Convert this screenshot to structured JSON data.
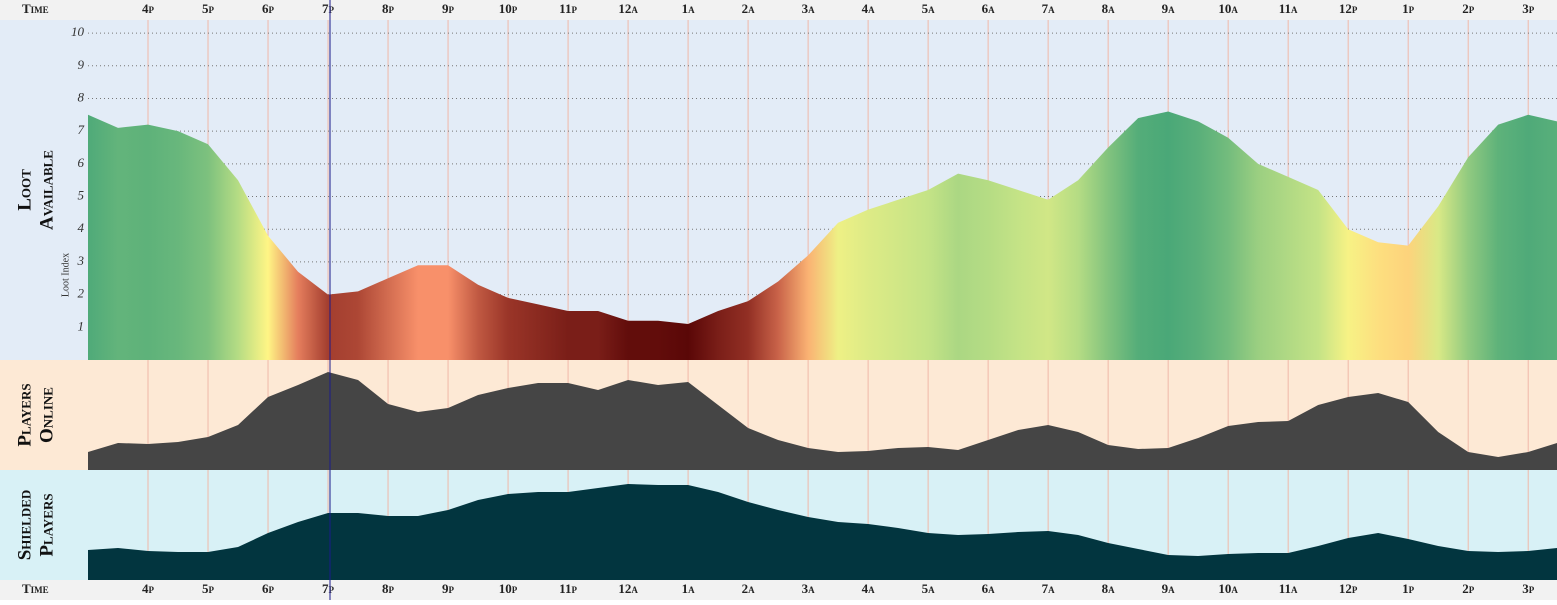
{
  "chart_data": [
    {
      "type": "area",
      "label": [
        "Loot",
        "Available"
      ],
      "ylabel": "Loot Index",
      "x_label": "Time",
      "xlim": [
        0,
        24.48
      ],
      "xticks": [
        {
          "value": 1,
          "label": "4p"
        },
        {
          "value": 2,
          "label": "5p"
        },
        {
          "value": 3,
          "label": "6p"
        },
        {
          "value": 4,
          "label": "7p"
        },
        {
          "value": 5,
          "label": "8p"
        },
        {
          "value": 6,
          "label": "9p"
        },
        {
          "value": 7,
          "label": "10p"
        },
        {
          "value": 8,
          "label": "11p"
        },
        {
          "value": 9,
          "label": "12a"
        },
        {
          "value": 10,
          "label": "1a"
        },
        {
          "value": 11,
          "label": "2a"
        },
        {
          "value": 12,
          "label": "3a"
        },
        {
          "value": 13,
          "label": "4a"
        },
        {
          "value": 14,
          "label": "5a"
        },
        {
          "value": 15,
          "label": "6a"
        },
        {
          "value": 16,
          "label": "7a"
        },
        {
          "value": 17,
          "label": "8a"
        },
        {
          "value": 18,
          "label": "9a"
        },
        {
          "value": 19,
          "label": "10a"
        },
        {
          "value": 20,
          "label": "11a"
        },
        {
          "value": 21,
          "label": "12p"
        },
        {
          "value": 22,
          "label": "1p"
        },
        {
          "value": 23,
          "label": "2p"
        },
        {
          "value": 24,
          "label": "3p"
        }
      ],
      "ylim": [
        0,
        10.4
      ],
      "yticks": [
        1,
        2,
        3,
        4,
        5,
        6,
        7,
        8,
        9,
        10
      ],
      "grid": true,
      "color_scale": [
        [
          1.1,
          "#5a0707"
        ],
        [
          1.9,
          "#9a3528"
        ],
        [
          2.9,
          "#f8906a"
        ],
        [
          3.8,
          "#fff585"
        ],
        [
          5.2,
          "#c4e386"
        ],
        [
          7.6,
          "#4aa878"
        ]
      ],
      "x": [
        0,
        0.5,
        1,
        1.5,
        2,
        2.5,
        3,
        3.5,
        4,
        4.5,
        5,
        5.5,
        6,
        6.5,
        7,
        7.5,
        8,
        8.5,
        9,
        9.5,
        10,
        10.5,
        11,
        11.5,
        12,
        12.5,
        13,
        13.5,
        14,
        14.5,
        15,
        15.5,
        16,
        16.5,
        17,
        17.5,
        18,
        18.5,
        19,
        19.5,
        20,
        20.5,
        21,
        21.5,
        22,
        22.5,
        23,
        23.5,
        24,
        24.48
      ],
      "values": [
        7.5,
        7.1,
        7.2,
        7.0,
        6.6,
        5.5,
        3.8,
        2.7,
        2.0,
        2.1,
        2.5,
        2.9,
        2.9,
        2.3,
        1.9,
        1.7,
        1.5,
        1.5,
        1.2,
        1.2,
        1.1,
        1.5,
        1.8,
        2.4,
        3.2,
        4.2,
        4.6,
        4.9,
        5.2,
        5.7,
        5.5,
        5.2,
        4.9,
        5.5,
        6.5,
        7.4,
        7.6,
        7.3,
        6.8,
        6.0,
        5.6,
        5.2,
        4.0,
        3.6,
        3.5,
        4.7,
        6.2,
        7.2,
        7.5,
        7.3
      ]
    },
    {
      "type": "area",
      "label": [
        "Players",
        "Online"
      ],
      "color": "#454545",
      "background": "#fde9d5",
      "ylim": [
        0,
        110
      ],
      "x": [
        0,
        0.5,
        1,
        1.5,
        2,
        2.5,
        3,
        3.5,
        4,
        4.5,
        5,
        5.5,
        6,
        6.5,
        7,
        7.5,
        8,
        8.5,
        9,
        9.5,
        10,
        10.5,
        11,
        11.5,
        12,
        12.5,
        13,
        13.5,
        14,
        14.5,
        15,
        15.5,
        16,
        16.5,
        17,
        17.5,
        18,
        18.5,
        19,
        19.5,
        20,
        20.5,
        21,
        21.5,
        22,
        22.5,
        23,
        23.5,
        24,
        24.48
      ],
      "values": [
        18,
        27,
        26,
        28,
        33,
        45,
        73,
        85,
        98,
        90,
        66,
        58,
        62,
        75,
        82,
        87,
        87,
        80,
        90,
        85,
        88,
        65,
        42,
        30,
        22,
        18,
        19,
        22,
        23,
        20,
        30,
        40,
        45,
        38,
        25,
        21,
        22,
        32,
        44,
        48,
        49,
        65,
        73,
        77,
        68,
        38,
        18,
        13,
        18,
        27
      ]
    },
    {
      "type": "area",
      "label": [
        "Shielded",
        "Players"
      ],
      "color": "#02353f",
      "background": "#d8f1f6",
      "ylim": [
        0,
        110
      ],
      "x": [
        0,
        0.5,
        1,
        1.5,
        2,
        2.5,
        3,
        3.5,
        4,
        4.5,
        5,
        5.5,
        6,
        6.5,
        7,
        7.5,
        8,
        8.5,
        9,
        9.5,
        10,
        10.5,
        11,
        11.5,
        12,
        12.5,
        13,
        13.5,
        14,
        14.5,
        15,
        15.5,
        16,
        16.5,
        17,
        17.5,
        18,
        18.5,
        19,
        19.5,
        20,
        20.5,
        21,
        21.5,
        22,
        22.5,
        23,
        23.5,
        24,
        24.48
      ],
      "values": [
        30,
        32,
        29,
        28,
        28,
        33,
        47,
        58,
        67,
        67,
        64,
        64,
        70,
        80,
        86,
        88,
        88,
        92,
        96,
        95,
        95,
        88,
        78,
        70,
        63,
        58,
        56,
        52,
        47,
        45,
        46,
        48,
        49,
        45,
        37,
        31,
        25,
        24,
        26,
        27,
        27,
        34,
        42,
        47,
        41,
        34,
        29,
        28,
        29,
        32
      ]
    }
  ]
}
